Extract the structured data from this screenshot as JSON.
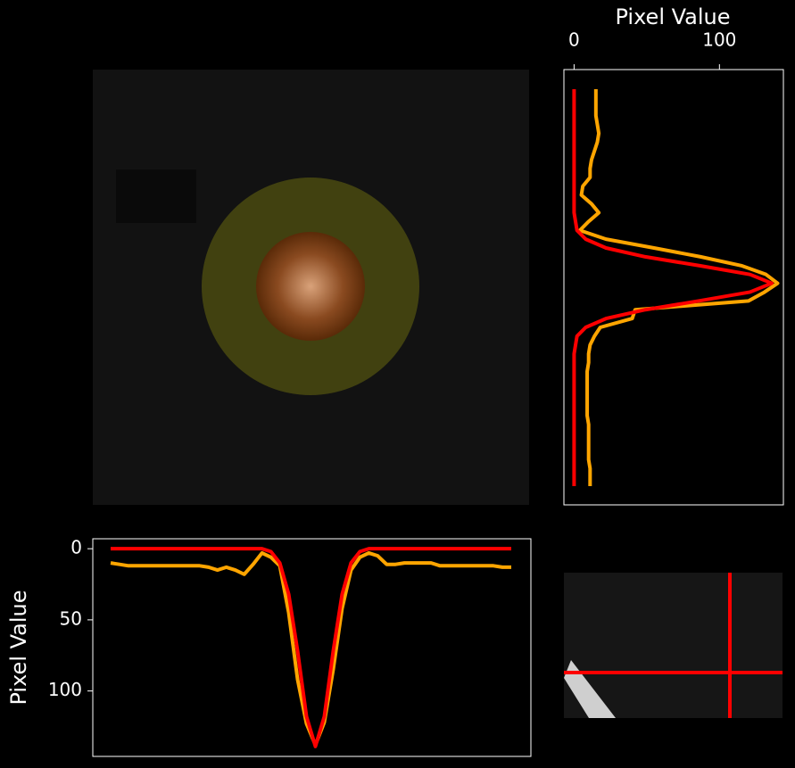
{
  "chart_data": [
    {
      "type": "line",
      "orientation": "vertical",
      "ylabel": "Pixel Value",
      "ylim": [
        -7,
        146
      ],
      "y_inverted": true,
      "yticks": [
        0,
        50,
        100
      ],
      "series": [
        {
          "color": "#ffa500",
          "values": [
            10,
            11,
            12,
            12,
            12,
            12,
            12,
            12,
            12,
            12,
            12,
            13,
            15,
            13,
            15,
            18,
            11,
            3,
            6,
            12,
            45,
            92,
            123,
            138,
            122,
            85,
            42,
            15,
            6,
            3,
            5,
            11,
            11,
            10,
            10,
            10,
            10,
            12,
            12,
            12,
            12,
            12,
            12,
            12,
            13,
            13
          ]
        },
        {
          "color": "#ff0000",
          "values": [
            0,
            0,
            0,
            0,
            0,
            0,
            0,
            0,
            0,
            0,
            0,
            0,
            0,
            0,
            0,
            0,
            0,
            0,
            2,
            10,
            32,
            72,
            118,
            139,
            118,
            72,
            32,
            10,
            2,
            0,
            0,
            0,
            0,
            0,
            0,
            0,
            0,
            0,
            0,
            0,
            0,
            0,
            0,
            0,
            0,
            0
          ]
        }
      ]
    },
    {
      "type": "line",
      "orientation": "horizontal",
      "xlabel": "Pixel Value",
      "xlim": [
        -7,
        144
      ],
      "xticks": [
        0,
        100
      ],
      "series": [
        {
          "color": "#ffa500",
          "values": [
            15,
            15,
            15,
            15,
            16,
            17,
            16,
            14,
            12,
            11,
            11,
            6,
            5,
            12,
            17,
            10,
            4,
            22,
            55,
            87,
            115,
            132,
            140,
            131,
            120,
            42,
            40,
            18,
            14,
            11,
            10,
            10,
            9,
            9,
            9,
            9,
            9,
            9,
            10,
            10,
            10,
            10,
            10,
            11,
            11,
            11
          ]
        },
        {
          "color": "#ff0000",
          "values": [
            0,
            0,
            0,
            0,
            0,
            0,
            0,
            0,
            0,
            0,
            0,
            0,
            0,
            0,
            0,
            1,
            2,
            8,
            22,
            49,
            86,
            121,
            136,
            121,
            86,
            49,
            22,
            8,
            2,
            1,
            0,
            0,
            0,
            0,
            0,
            0,
            0,
            0,
            0,
            0,
            0,
            0,
            0,
            0,
            0,
            0
          ]
        }
      ]
    }
  ]
}
